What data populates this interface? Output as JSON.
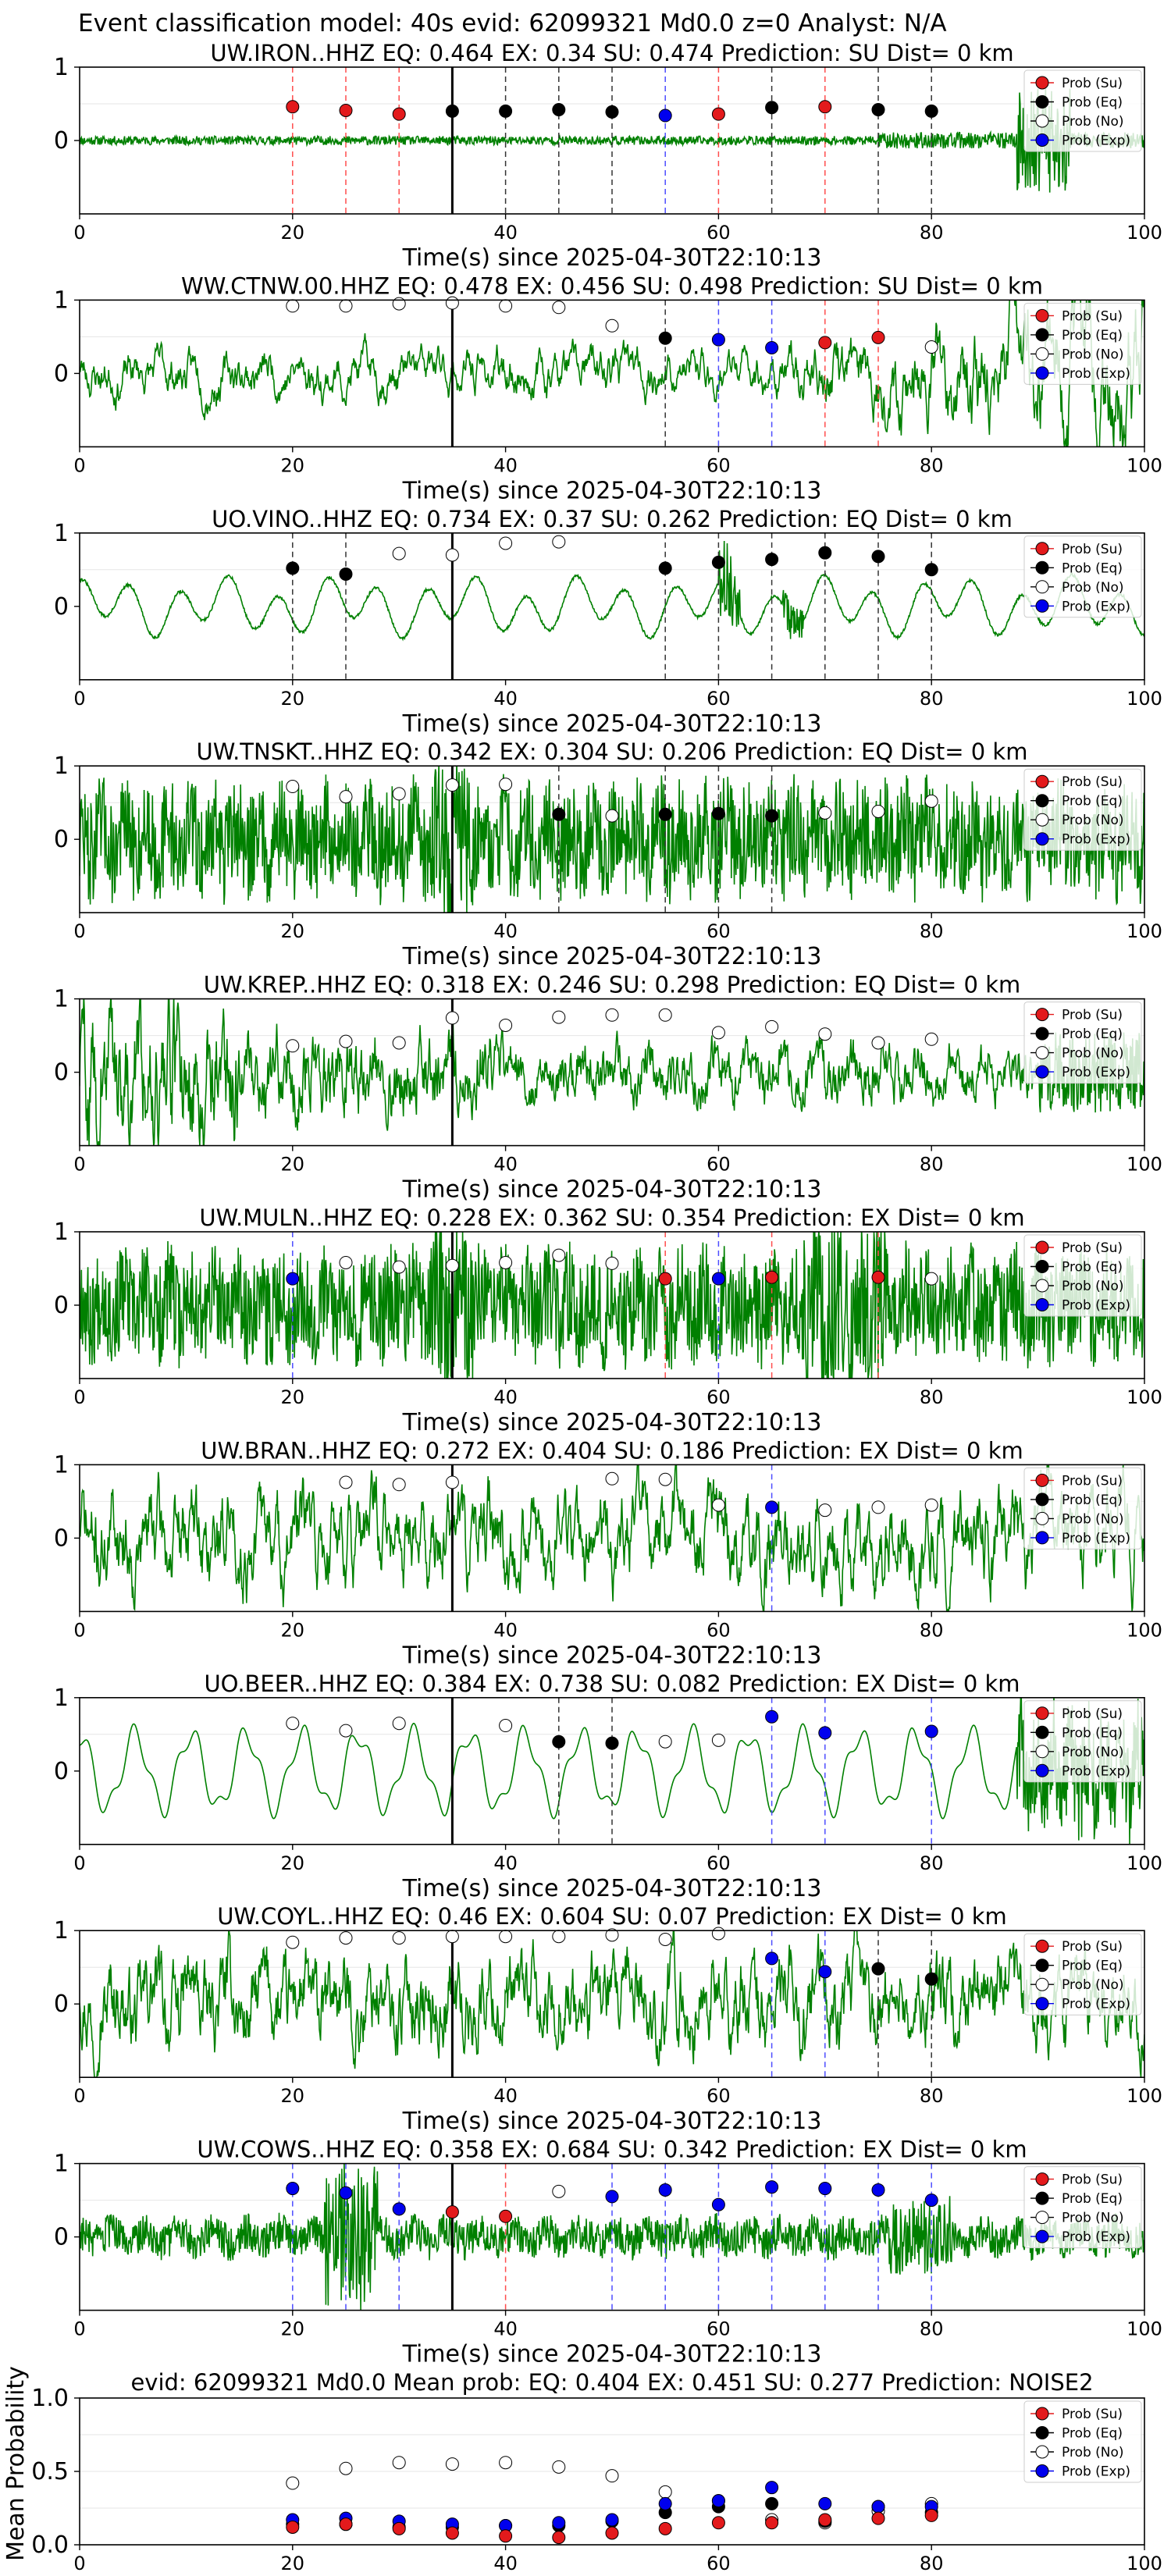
{
  "suptitle": "Event classification model: 40s evid: 62099321 Md0.0 z=0 Analyst: N/A",
  "chart_data": {
    "type": "line+scatter",
    "x_range": [
      0,
      100
    ],
    "x_ticks": [
      "0",
      "20",
      "40",
      "60",
      "80",
      "100"
    ],
    "y_ticks": [
      "0",
      "1"
    ],
    "xlabel": "Time(s) since 2025-04-30T22:10:13",
    "origin_time_x": 35,
    "legend": [
      "Prob (Su)",
      "Prob (Eq)",
      "Prob (No)",
      "Prob (Exp)"
    ],
    "classes": {
      "su": {
        "label": "Prob (Su)",
        "color": "#e31a1c"
      },
      "eq": {
        "label": "Prob (Eq)",
        "color": "#000000"
      },
      "no": {
        "label": "Prob (No)",
        "color": "#ffffff"
      },
      "ex": {
        "label": "Prob (Exp)",
        "color": "#0000ee"
      }
    },
    "waveform_color": "#008000",
    "window_times": [
      20,
      25,
      30,
      35,
      40,
      45,
      50,
      55,
      60,
      65,
      70,
      75,
      80
    ],
    "stations": [
      {
        "title": "UW.IRON..HHZ   EQ: 0.464  EX: 0.34  SU: 0.474   Prediction: SU    Dist= 0 km",
        "style": "burst",
        "seed": 11,
        "amp": 0.18,
        "predictions": [
          {
            "x": 20,
            "p": 0.46,
            "c": "su"
          },
          {
            "x": 25,
            "p": 0.41,
            "c": "su"
          },
          {
            "x": 30,
            "p": 0.36,
            "c": "su"
          },
          {
            "x": 35,
            "p": 0.4,
            "c": "eq"
          },
          {
            "x": 40,
            "p": 0.4,
            "c": "eq"
          },
          {
            "x": 45,
            "p": 0.42,
            "c": "eq"
          },
          {
            "x": 50,
            "p": 0.39,
            "c": "eq"
          },
          {
            "x": 55,
            "p": 0.34,
            "c": "ex"
          },
          {
            "x": 60,
            "p": 0.36,
            "c": "su"
          },
          {
            "x": 65,
            "p": 0.45,
            "c": "eq"
          },
          {
            "x": 70,
            "p": 0.46,
            "c": "su"
          },
          {
            "x": 75,
            "p": 0.42,
            "c": "eq"
          },
          {
            "x": 80,
            "p": 0.4,
            "c": "eq"
          }
        ]
      },
      {
        "title": "WW.CTNW.00.HHZ   EQ: 0.478  EX: 0.456  SU: 0.498   Prediction: SU    Dist= 0 km",
        "style": "rising",
        "seed": 23,
        "amp": 0.5,
        "predictions": [
          {
            "x": 20,
            "p": 0.92,
            "c": "no"
          },
          {
            "x": 25,
            "p": 0.92,
            "c": "no"
          },
          {
            "x": 30,
            "p": 0.95,
            "c": "no"
          },
          {
            "x": 35,
            "p": 0.96,
            "c": "no"
          },
          {
            "x": 40,
            "p": 0.92,
            "c": "no"
          },
          {
            "x": 45,
            "p": 0.9,
            "c": "no"
          },
          {
            "x": 50,
            "p": 0.65,
            "c": "no"
          },
          {
            "x": 55,
            "p": 0.48,
            "c": "eq"
          },
          {
            "x": 60,
            "p": 0.46,
            "c": "ex"
          },
          {
            "x": 65,
            "p": 0.35,
            "c": "ex"
          },
          {
            "x": 70,
            "p": 0.42,
            "c": "su"
          },
          {
            "x": 75,
            "p": 0.49,
            "c": "su"
          },
          {
            "x": 80,
            "p": 0.36,
            "c": "no"
          }
        ]
      },
      {
        "title": "UO.VINO..HHZ   EQ: 0.734  EX: 0.37  SU: 0.262   Prediction: EQ    Dist= 0 km",
        "style": "smooth",
        "seed": 31,
        "amp": 0.35,
        "predictions": [
          {
            "x": 20,
            "p": 0.52,
            "c": "eq"
          },
          {
            "x": 25,
            "p": 0.44,
            "c": "eq"
          },
          {
            "x": 30,
            "p": 0.72,
            "c": "no"
          },
          {
            "x": 35,
            "p": 0.7,
            "c": "no"
          },
          {
            "x": 40,
            "p": 0.86,
            "c": "no"
          },
          {
            "x": 45,
            "p": 0.88,
            "c": "no"
          },
          {
            "x": 55,
            "p": 0.52,
            "c": "eq"
          },
          {
            "x": 60,
            "p": 0.6,
            "c": "eq"
          },
          {
            "x": 65,
            "p": 0.64,
            "c": "eq"
          },
          {
            "x": 70,
            "p": 0.73,
            "c": "eq"
          },
          {
            "x": 75,
            "p": 0.68,
            "c": "eq"
          },
          {
            "x": 80,
            "p": 0.5,
            "c": "eq"
          }
        ]
      },
      {
        "title": "UW.TNSKT..HHZ   EQ: 0.342  EX: 0.304  SU: 0.206   Prediction: EQ    Dist= 0 km",
        "style": "dense",
        "seed": 47,
        "amp": 1.0,
        "predictions": [
          {
            "x": 20,
            "p": 0.72,
            "c": "no"
          },
          {
            "x": 25,
            "p": 0.58,
            "c": "no"
          },
          {
            "x": 30,
            "p": 0.62,
            "c": "no"
          },
          {
            "x": 35,
            "p": 0.74,
            "c": "no"
          },
          {
            "x": 40,
            "p": 0.75,
            "c": "no"
          },
          {
            "x": 45,
            "p": 0.34,
            "c": "eq"
          },
          {
            "x": 50,
            "p": 0.32,
            "c": "no"
          },
          {
            "x": 55,
            "p": 0.34,
            "c": "eq"
          },
          {
            "x": 60,
            "p": 0.35,
            "c": "eq"
          },
          {
            "x": 65,
            "p": 0.32,
            "c": "eq"
          },
          {
            "x": 70,
            "p": 0.36,
            "c": "no"
          },
          {
            "x": 75,
            "p": 0.38,
            "c": "no"
          },
          {
            "x": 80,
            "p": 0.52,
            "c": "no"
          }
        ]
      },
      {
        "title": "UW.KREP..HHZ   EQ: 0.318  EX: 0.246  SU: 0.298   Prediction: EQ    Dist= 0 km",
        "style": "decay",
        "seed": 59,
        "amp": 0.9,
        "predictions": [
          {
            "x": 20,
            "p": 0.36,
            "c": "no"
          },
          {
            "x": 25,
            "p": 0.42,
            "c": "no"
          },
          {
            "x": 30,
            "p": 0.4,
            "c": "no"
          },
          {
            "x": 35,
            "p": 0.74,
            "c": "no"
          },
          {
            "x": 40,
            "p": 0.64,
            "c": "no"
          },
          {
            "x": 45,
            "p": 0.75,
            "c": "no"
          },
          {
            "x": 50,
            "p": 0.78,
            "c": "no"
          },
          {
            "x": 55,
            "p": 0.78,
            "c": "no"
          },
          {
            "x": 60,
            "p": 0.54,
            "c": "no"
          },
          {
            "x": 65,
            "p": 0.62,
            "c": "no"
          },
          {
            "x": 70,
            "p": 0.52,
            "c": "no"
          },
          {
            "x": 75,
            "p": 0.4,
            "c": "no"
          },
          {
            "x": 80,
            "p": 0.45,
            "c": "no"
          }
        ]
      },
      {
        "title": "UW.MULN..HHZ   EQ: 0.228  EX: 0.362  SU: 0.354   Prediction: EX    Dist= 0 km",
        "style": "dense",
        "seed": 67,
        "amp": 1.0,
        "predictions": [
          {
            "x": 20,
            "p": 0.36,
            "c": "ex"
          },
          {
            "x": 25,
            "p": 0.58,
            "c": "no"
          },
          {
            "x": 30,
            "p": 0.52,
            "c": "no"
          },
          {
            "x": 35,
            "p": 0.54,
            "c": "no"
          },
          {
            "x": 40,
            "p": 0.58,
            "c": "no"
          },
          {
            "x": 45,
            "p": 0.68,
            "c": "no"
          },
          {
            "x": 50,
            "p": 0.57,
            "c": "no"
          },
          {
            "x": 55,
            "p": 0.36,
            "c": "su"
          },
          {
            "x": 60,
            "p": 0.36,
            "c": "ex"
          },
          {
            "x": 65,
            "p": 0.38,
            "c": "su"
          },
          {
            "x": 75,
            "p": 0.38,
            "c": "su"
          },
          {
            "x": 80,
            "p": 0.36,
            "c": "no"
          }
        ]
      },
      {
        "title": "UW.BRAN..HHZ   EQ: 0.272  EX: 0.404  SU: 0.186   Prediction: EX    Dist= 0 km",
        "style": "rough",
        "seed": 71,
        "amp": 0.7,
        "predictions": [
          {
            "x": 25,
            "p": 0.76,
            "c": "no"
          },
          {
            "x": 30,
            "p": 0.73,
            "c": "no"
          },
          {
            "x": 35,
            "p": 0.76,
            "c": "no"
          },
          {
            "x": 50,
            "p": 0.81,
            "c": "no"
          },
          {
            "x": 55,
            "p": 0.8,
            "c": "no"
          },
          {
            "x": 60,
            "p": 0.45,
            "c": "no"
          },
          {
            "x": 65,
            "p": 0.42,
            "c": "ex"
          },
          {
            "x": 70,
            "p": 0.38,
            "c": "no"
          },
          {
            "x": 75,
            "p": 0.42,
            "c": "no"
          },
          {
            "x": 80,
            "p": 0.45,
            "c": "no"
          }
        ]
      },
      {
        "title": "UO.BEER..HHZ   EQ: 0.384  EX: 0.738  SU: 0.082   Prediction: EX    Dist= 0 km",
        "style": "smooth-end",
        "seed": 83,
        "amp": 0.8,
        "predictions": [
          {
            "x": 20,
            "p": 0.65,
            "c": "no"
          },
          {
            "x": 25,
            "p": 0.55,
            "c": "no"
          },
          {
            "x": 30,
            "p": 0.65,
            "c": "no"
          },
          {
            "x": 40,
            "p": 0.62,
            "c": "no"
          },
          {
            "x": 45,
            "p": 0.4,
            "c": "eq"
          },
          {
            "x": 50,
            "p": 0.38,
            "c": "eq"
          },
          {
            "x": 55,
            "p": 0.4,
            "c": "no"
          },
          {
            "x": 60,
            "p": 0.42,
            "c": "no"
          },
          {
            "x": 65,
            "p": 0.74,
            "c": "ex"
          },
          {
            "x": 70,
            "p": 0.52,
            "c": "ex"
          },
          {
            "x": 80,
            "p": 0.54,
            "c": "ex"
          }
        ]
      },
      {
        "title": "UW.COYL..HHZ   EQ: 0.46  EX: 0.604  SU: 0.07   Prediction: EX    Dist= 0 km",
        "style": "rough",
        "seed": 97,
        "amp": 0.6,
        "predictions": [
          {
            "x": 20,
            "p": 0.84,
            "c": "no"
          },
          {
            "x": 25,
            "p": 0.9,
            "c": "no"
          },
          {
            "x": 30,
            "p": 0.9,
            "c": "no"
          },
          {
            "x": 35,
            "p": 0.92,
            "c": "no"
          },
          {
            "x": 40,
            "p": 0.92,
            "c": "no"
          },
          {
            "x": 45,
            "p": 0.92,
            "c": "no"
          },
          {
            "x": 50,
            "p": 0.94,
            "c": "no"
          },
          {
            "x": 55,
            "p": 0.88,
            "c": "no"
          },
          {
            "x": 60,
            "p": 0.96,
            "c": "no"
          },
          {
            "x": 65,
            "p": 0.62,
            "c": "ex"
          },
          {
            "x": 70,
            "p": 0.44,
            "c": "ex"
          },
          {
            "x": 75,
            "p": 0.48,
            "c": "eq"
          },
          {
            "x": 80,
            "p": 0.34,
            "c": "eq"
          }
        ]
      },
      {
        "title": "UW.COWS..HHZ   EQ: 0.358  EX: 0.684  SU: 0.342   Prediction: EX    Dist= 0 km",
        "style": "burst25",
        "seed": 103,
        "amp": 0.45,
        "predictions": [
          {
            "x": 20,
            "p": 0.66,
            "c": "ex"
          },
          {
            "x": 25,
            "p": 0.6,
            "c": "ex"
          },
          {
            "x": 30,
            "p": 0.38,
            "c": "ex"
          },
          {
            "x": 35,
            "p": 0.34,
            "c": "su"
          },
          {
            "x": 40,
            "p": 0.28,
            "c": "su"
          },
          {
            "x": 45,
            "p": 0.62,
            "c": "no"
          },
          {
            "x": 50,
            "p": 0.55,
            "c": "ex"
          },
          {
            "x": 55,
            "p": 0.64,
            "c": "ex"
          },
          {
            "x": 60,
            "p": 0.44,
            "c": "ex"
          },
          {
            "x": 65,
            "p": 0.68,
            "c": "ex"
          },
          {
            "x": 70,
            "p": 0.66,
            "c": "ex"
          },
          {
            "x": 75,
            "p": 0.64,
            "c": "ex"
          },
          {
            "x": 80,
            "p": 0.5,
            "c": "ex"
          }
        ]
      }
    ],
    "summary": {
      "title": "evid: 62099321  Md0.0   Mean prob:   EQ: 0.404  EX: 0.451  SU: 0.277   Prediction: NOISE2",
      "ylabel": "Mean Probability",
      "y_range": [
        0,
        1
      ],
      "y_ticks": [
        "0.0",
        "0.5",
        "1.0"
      ],
      "x": [
        20,
        25,
        30,
        35,
        40,
        45,
        50,
        55,
        60,
        65,
        70,
        75,
        80
      ],
      "no": [
        0.42,
        0.52,
        0.56,
        0.55,
        0.56,
        0.53,
        0.47,
        0.36,
        0.3,
        0.17,
        0.15,
        0.23,
        0.28
      ],
      "eq": [
        0.14,
        0.14,
        0.12,
        0.12,
        0.13,
        0.13,
        0.16,
        0.22,
        0.26,
        0.28,
        0.16,
        0.26,
        0.22
      ],
      "ex": [
        0.17,
        0.18,
        0.16,
        0.14,
        0.13,
        0.15,
        0.17,
        0.28,
        0.3,
        0.39,
        0.28,
        0.26,
        0.26
      ],
      "su": [
        0.12,
        0.14,
        0.11,
        0.08,
        0.06,
        0.05,
        0.08,
        0.11,
        0.15,
        0.15,
        0.17,
        0.18,
        0.2
      ]
    }
  }
}
